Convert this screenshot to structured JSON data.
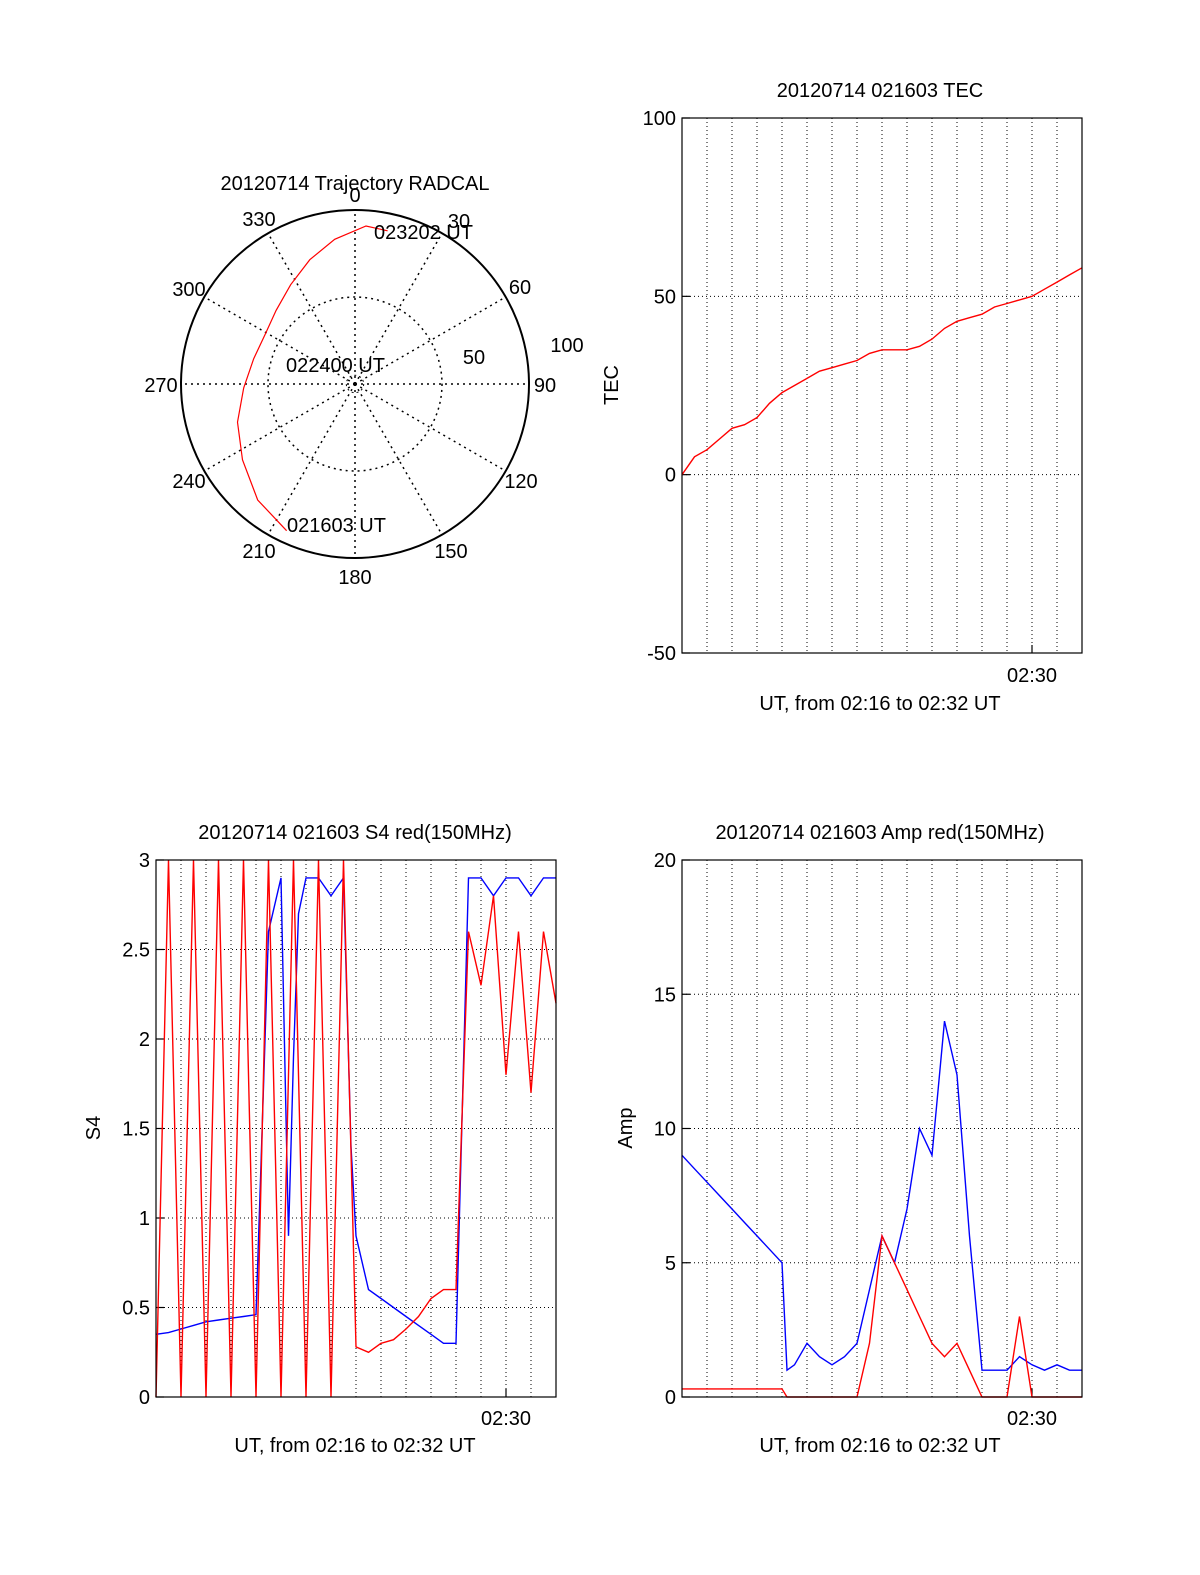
{
  "colors": {
    "red": "#ff0000",
    "blue": "#0000ff",
    "axis": "#000000",
    "grid": "#000000"
  },
  "chart_data": [
    {
      "id": "trajectory",
      "type": "polar",
      "title": "20120714 Trajectory RADCAL",
      "angle_labels": [
        "0",
        "30",
        "60",
        "90",
        "120",
        "150",
        "180",
        "210",
        "240",
        "270",
        "300",
        "330"
      ],
      "radial_labels": [
        "50",
        "100"
      ],
      "rmax": 100,
      "track_start_label": "021603 UT",
      "track_mid_label": "022400 UT",
      "track_end_label": "023202 UT",
      "track": {
        "color": "red",
        "azimuth": [
          205,
          220,
          236,
          252,
          268,
          284,
          299,
          313,
          327,
          340,
          352,
          4,
          12
        ],
        "zenith": [
          93,
          87,
          78,
          71,
          64,
          60,
          59,
          62,
          68,
          76,
          84,
          91,
          90
        ]
      },
      "grid": true
    },
    {
      "id": "tec",
      "type": "line",
      "title": "20120714 021603 TEC",
      "xlabel": "UT, from 02:16 to 02:32 UT",
      "ylabel": "TEC",
      "xlim": [
        0,
        16
      ],
      "ylim": [
        -50,
        100
      ],
      "yticks": [
        -50,
        0,
        50,
        100
      ],
      "xtick_label": "02:30",
      "xtick_value": 14,
      "series": [
        {
          "color": "red",
          "x": [
            0,
            0.5,
            1,
            1.5,
            2,
            2.5,
            3,
            3.5,
            4,
            4.5,
            5,
            5.5,
            6,
            6.5,
            7,
            7.5,
            8,
            8.5,
            9,
            9.5,
            10,
            10.5,
            11,
            11.5,
            12,
            12.5,
            13,
            13.5,
            14,
            14.5,
            15,
            15.5,
            16
          ],
          "y": [
            0,
            5,
            7,
            10,
            13,
            14,
            16,
            20,
            23,
            25,
            27,
            29,
            30,
            31,
            32,
            34,
            35,
            35,
            35,
            36,
            38,
            41,
            43,
            44,
            45,
            47,
            48,
            49,
            50,
            52,
            54,
            56,
            58
          ]
        }
      ],
      "grid": true
    },
    {
      "id": "s4",
      "type": "line",
      "title": "20120714 021603 S4 red(150MHz)",
      "xlabel": "UT, from 02:16 to 02:32 UT",
      "ylabel": "S4",
      "xlim": [
        0,
        16
      ],
      "ylim": [
        0,
        3
      ],
      "yticks": [
        0,
        0.5,
        1,
        1.5,
        2,
        2.5,
        3
      ],
      "xtick_label": "02:30",
      "xtick_value": 14,
      "series": [
        {
          "color": "blue",
          "x": [
            0,
            0.5,
            1,
            1.5,
            2,
            2.5,
            3,
            3.5,
            4,
            4.2,
            4.5,
            5,
            5.3,
            5.5,
            5.7,
            6,
            6.5,
            7,
            7.5,
            7.8,
            8,
            8.5,
            9,
            9.5,
            10,
            10.5,
            11,
            11.5,
            12,
            12.5,
            13,
            13.5,
            14,
            14.5,
            15,
            15.5,
            16
          ],
          "y": [
            0.35,
            0.36,
            0.38,
            0.4,
            0.42,
            0.43,
            0.44,
            0.45,
            0.46,
            1.3,
            2.6,
            2.9,
            0.9,
            1.9,
            2.7,
            2.9,
            2.9,
            2.8,
            2.9,
            1.4,
            0.9,
            0.6,
            0.55,
            0.5,
            0.45,
            0.4,
            0.35,
            0.3,
            0.3,
            2.9,
            2.9,
            2.8,
            2.9,
            2.9,
            2.8,
            2.9,
            2.9
          ]
        },
        {
          "color": "red",
          "x": [
            0,
            0.5,
            1,
            1.5,
            2,
            2.5,
            3,
            3.5,
            4,
            4.5,
            5,
            5.5,
            6,
            6.5,
            7,
            7.5,
            8,
            8.5,
            9,
            9.5,
            10,
            10.5,
            11,
            11.5,
            12,
            12.5,
            13,
            13.5,
            14,
            14.5,
            15,
            15.5,
            16
          ],
          "y": [
            0,
            3,
            0,
            3,
            0,
            3,
            0,
            3,
            0,
            3,
            0,
            3,
            0,
            3,
            0,
            3,
            0.28,
            0.25,
            0.3,
            0.32,
            0.38,
            0.45,
            0.55,
            0.6,
            0.6,
            2.6,
            2.3,
            2.8,
            1.8,
            2.6,
            1.7,
            2.6,
            2.2
          ]
        }
      ],
      "grid": true
    },
    {
      "id": "amp",
      "type": "line",
      "title": "20120714 021603 Amp red(150MHz)",
      "xlabel": "UT, from 02:16 to 02:32 UT",
      "ylabel": "Amp",
      "xlim": [
        0,
        16
      ],
      "ylim": [
        0,
        20
      ],
      "yticks": [
        0,
        5,
        10,
        15,
        20
      ],
      "xtick_label": "02:30",
      "xtick_value": 14,
      "series": [
        {
          "color": "blue",
          "x": [
            0,
            0.5,
            1,
            1.5,
            2,
            2.5,
            3,
            3.5,
            4,
            4.2,
            4.5,
            5,
            5.5,
            6,
            6.5,
            7,
            7.5,
            8,
            8.5,
            9,
            9.5,
            10,
            10.5,
            11,
            11.5,
            12,
            12.5,
            13,
            13.5,
            14,
            14.5,
            15,
            15.5,
            16
          ],
          "y": [
            9,
            8.5,
            8,
            7.5,
            7,
            6.5,
            6,
            5.5,
            5,
            1,
            1.2,
            2,
            1.5,
            1.2,
            1.5,
            2,
            4,
            6,
            5,
            7,
            10,
            9,
            14,
            12,
            6,
            1,
            1,
            1,
            1.5,
            1.2,
            1,
            1.2,
            1,
            1
          ]
        },
        {
          "color": "red",
          "x": [
            0,
            0.5,
            1,
            1.5,
            2,
            2.5,
            3,
            3.5,
            4,
            4.2,
            5,
            6,
            7,
            7.5,
            8,
            8.5,
            9,
            9.5,
            10,
            10.5,
            11,
            11.5,
            12,
            12.5,
            13,
            13.5,
            14,
            15,
            16
          ],
          "y": [
            0.3,
            0.3,
            0.3,
            0.3,
            0.3,
            0.3,
            0.3,
            0.3,
            0.3,
            0,
            0,
            0,
            0,
            2,
            6,
            5,
            4,
            3,
            2,
            1.5,
            2,
            1,
            0,
            0,
            0,
            3,
            0,
            0,
            0
          ]
        }
      ],
      "grid": true
    }
  ]
}
